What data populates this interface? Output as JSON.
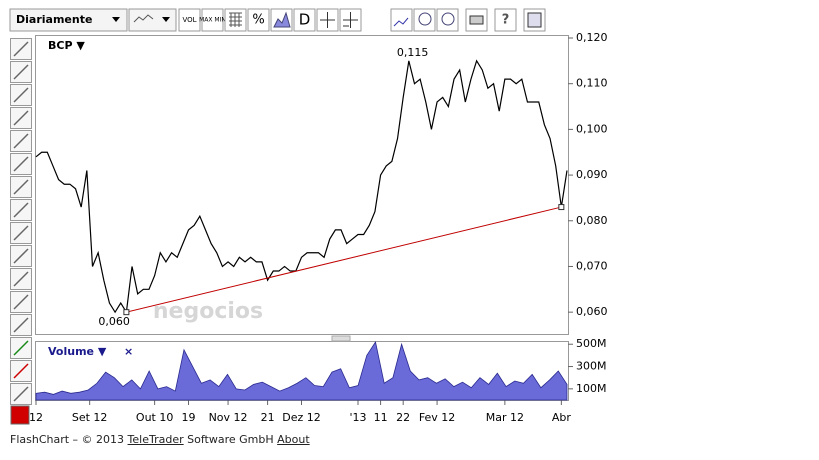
{
  "toolbar": {
    "period": "Diariamente",
    "buttons": [
      "VOL",
      "MAX MIN",
      "%",
      "D"
    ]
  },
  "chart_data": {
    "type": "line",
    "title": "BCP ▼",
    "color": "#000000",
    "values": [
      0.094,
      0.095,
      0.095,
      0.092,
      0.089,
      0.088,
      0.088,
      0.087,
      0.083,
      0.091,
      0.07,
      0.073,
      0.067,
      0.062,
      0.06,
      0.062,
      0.06,
      0.07,
      0.064,
      0.065,
      0.065,
      0.068,
      0.073,
      0.071,
      0.073,
      0.072,
      0.075,
      0.078,
      0.079,
      0.081,
      0.078,
      0.075,
      0.073,
      0.07,
      0.071,
      0.07,
      0.072,
      0.071,
      0.072,
      0.071,
      0.071,
      0.067,
      0.069,
      0.069,
      0.07,
      0.069,
      0.069,
      0.072,
      0.073,
      0.073,
      0.073,
      0.072,
      0.076,
      0.078,
      0.078,
      0.075,
      0.076,
      0.077,
      0.077,
      0.079,
      0.082,
      0.09,
      0.092,
      0.093,
      0.098,
      0.107,
      0.115,
      0.11,
      0.111,
      0.106,
      0.1,
      0.106,
      0.107,
      0.105,
      0.111,
      0.113,
      0.106,
      0.111,
      0.115,
      0.113,
      0.109,
      0.11,
      0.104,
      0.111,
      0.111,
      0.11,
      0.111,
      0.106,
      0.106,
      0.106,
      0.101,
      0.098,
      0.092,
      0.083,
      0.091
    ],
    "ylim": [
      0.055,
      0.12
    ],
    "yticks": [
      {
        "value": 0.06,
        "label": "0,060"
      },
      {
        "value": 0.07,
        "label": "0,070"
      },
      {
        "value": 0.08,
        "label": "0,080"
      },
      {
        "value": 0.09,
        "label": "0,090"
      },
      {
        "value": 0.1,
        "label": "0,100"
      },
      {
        "value": 0.11,
        "label": "0,110"
      },
      {
        "value": 0.12,
        "label": "0,120"
      }
    ],
    "xticks": [
      {
        "value": 0,
        "label": "12"
      },
      {
        "value": 9.5,
        "label": "Set 12"
      },
      {
        "value": 21,
        "label": "Out 10"
      },
      {
        "value": 27,
        "label": "19"
      },
      {
        "value": 34,
        "label": "Nov 12"
      },
      {
        "value": 41,
        "label": "21"
      },
      {
        "value": 47,
        "label": "Dez 12"
      },
      {
        "value": 57,
        "label": "'13"
      },
      {
        "value": 61,
        "label": "11"
      },
      {
        "value": 65,
        "label": "22"
      },
      {
        "value": 71,
        "label": "Fev 12"
      },
      {
        "value": 83,
        "label": "Mar 12"
      },
      {
        "value": 93,
        "label": "Abr"
      }
    ],
    "annotations": [
      {
        "index": 66,
        "value": 0.115,
        "label": "0,115"
      },
      {
        "index": 16,
        "value": 0.06,
        "label": "0,060"
      }
    ],
    "trendline": {
      "from": [
        16,
        0.06
      ],
      "to": [
        93,
        0.083
      ],
      "color": "#c00000"
    },
    "watermark": "negocios"
  },
  "volume_chart": {
    "type": "area",
    "title": "Volume ▼",
    "close": "×",
    "color": "#6a6ad8",
    "values": [
      60,
      70,
      50,
      80,
      60,
      70,
      90,
      150,
      250,
      200,
      120,
      180,
      100,
      260,
      100,
      120,
      80,
      450,
      300,
      150,
      180,
      120,
      230,
      100,
      90,
      140,
      160,
      120,
      80,
      110,
      150,
      200,
      130,
      120,
      250,
      280,
      110,
      130,
      400,
      520,
      150,
      200,
      500,
      260,
      180,
      200,
      150,
      190,
      120,
      160,
      110,
      200,
      140,
      240,
      120,
      170,
      150,
      230,
      110,
      180,
      260,
      140
    ],
    "ylim": [
      0,
      520
    ],
    "yticks": [
      {
        "value": 100,
        "label": "100M"
      },
      {
        "value": 300,
        "label": "300M"
      },
      {
        "value": 500,
        "label": "500M"
      }
    ]
  },
  "footer": {
    "text": "FlashChart – © 2013 ",
    "link1": "TeleTrader",
    "text2": " Software GmbH ",
    "link2": "About"
  }
}
